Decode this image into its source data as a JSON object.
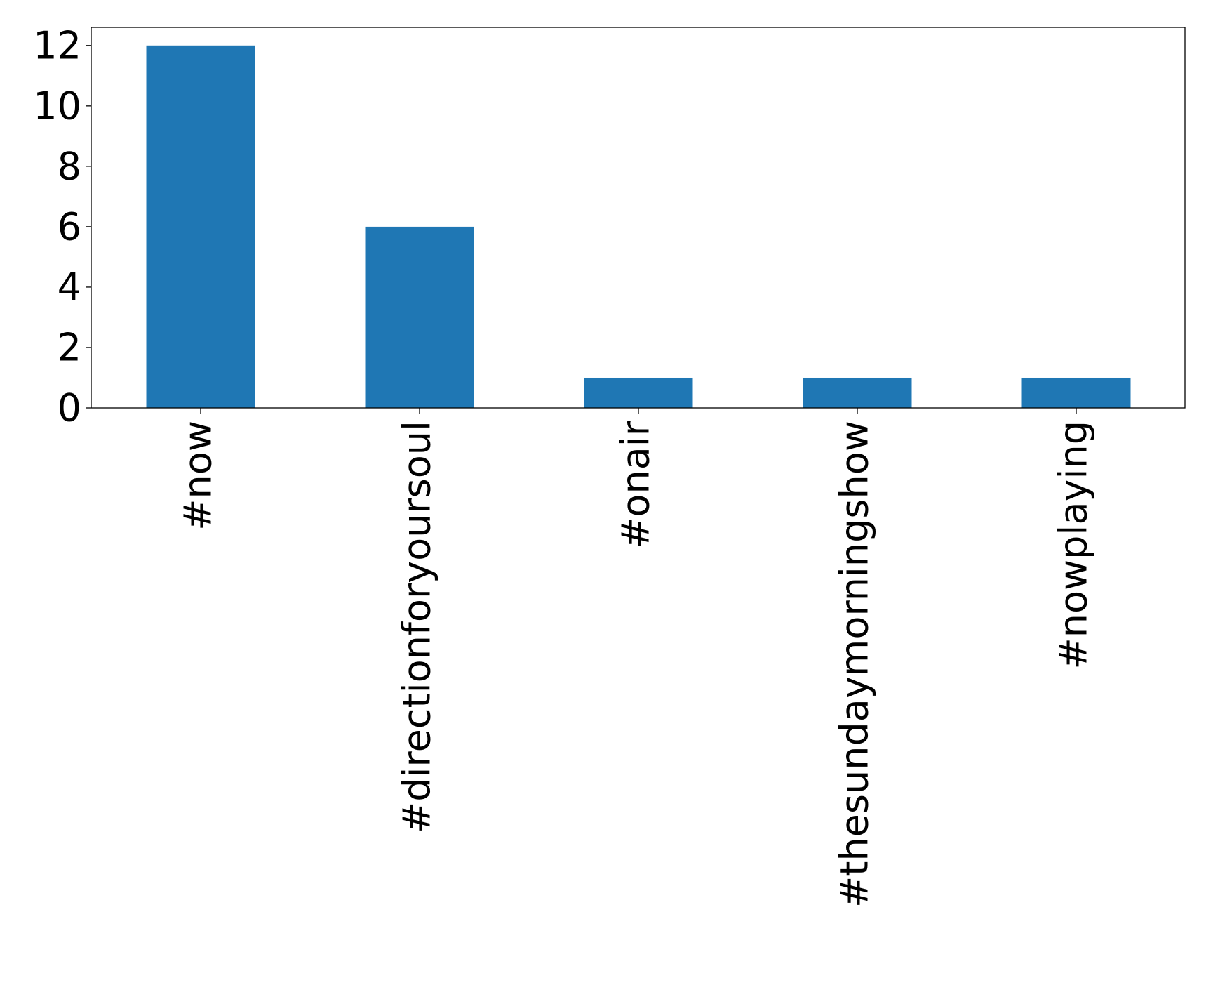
{
  "chart_data": {
    "type": "bar",
    "categories": [
      "#now",
      "#directionforyoursoul",
      "#onair",
      "#thesundaymorningshow",
      "#nowplaying"
    ],
    "values": [
      12,
      6,
      1,
      1,
      1
    ],
    "title": "",
    "xlabel": "",
    "ylabel": "",
    "ylim": [
      0,
      12.6
    ],
    "yticks": [
      0,
      2,
      4,
      6,
      8,
      10,
      12
    ],
    "grid": false,
    "legend": "none",
    "bar_color": "#1f77b4"
  }
}
